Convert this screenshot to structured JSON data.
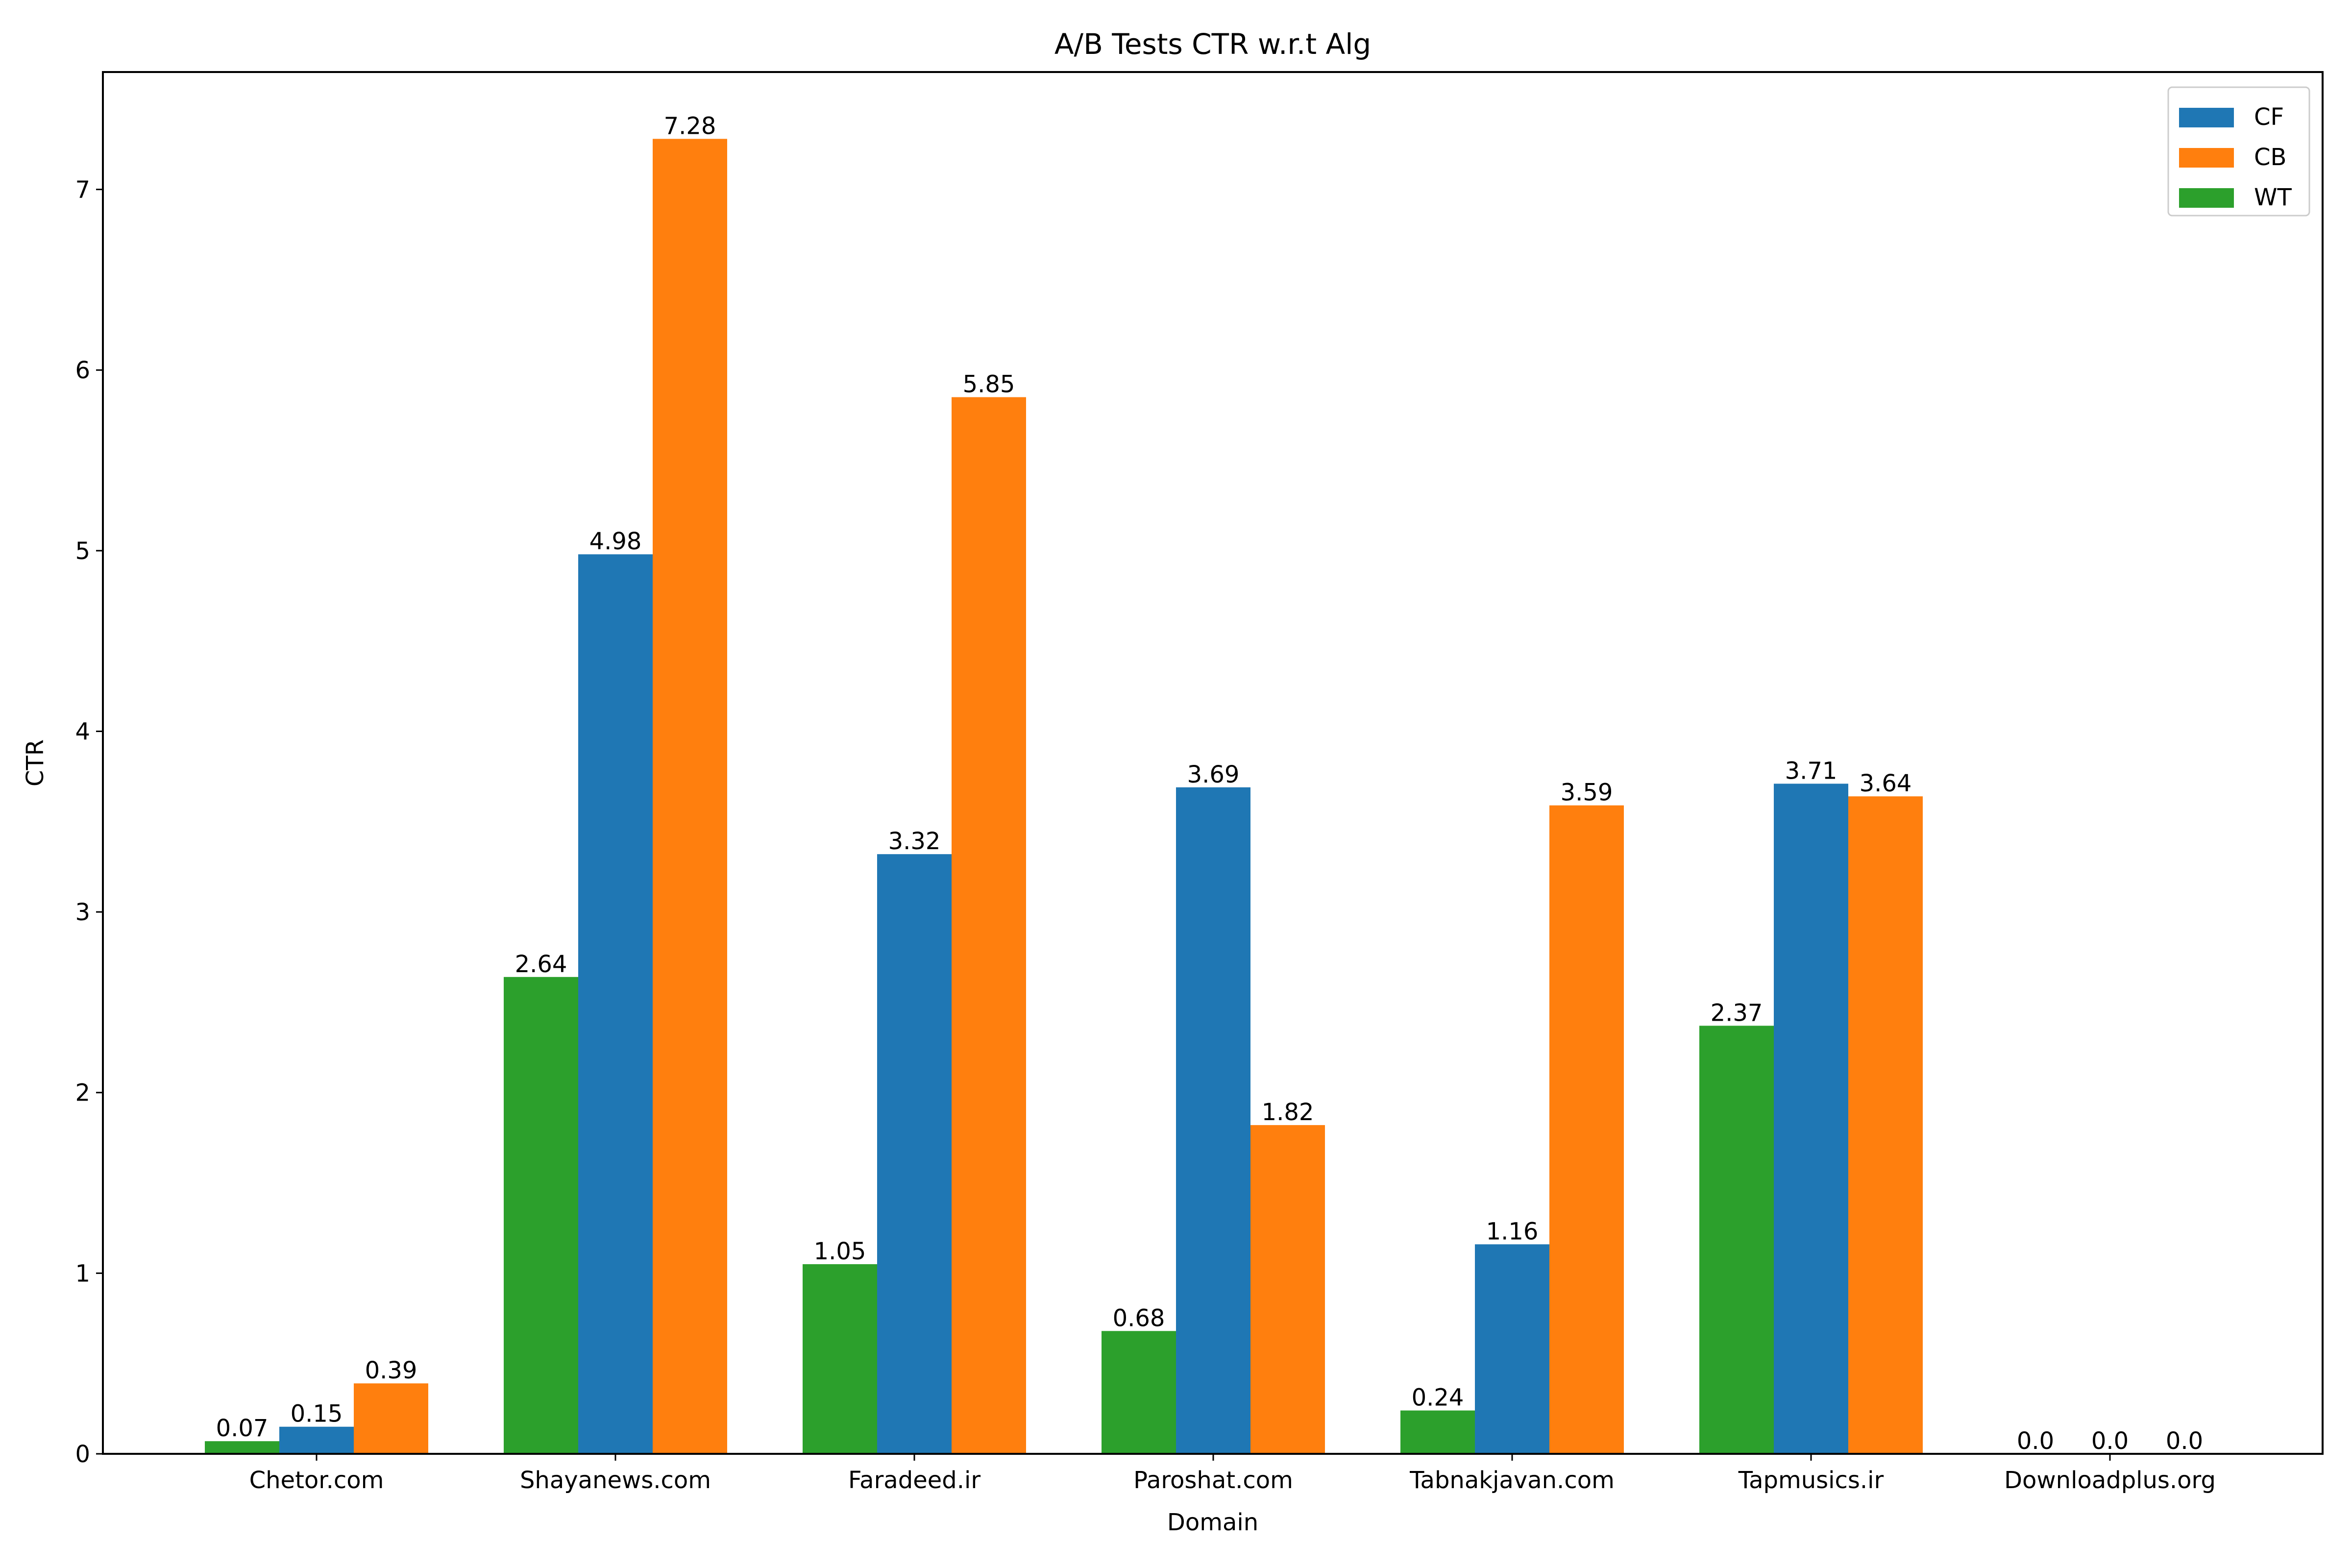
{
  "chart_data": {
    "type": "bar",
    "title": "A/B Tests CTR w.r.t Alg",
    "xlabel": "Domain",
    "ylabel": "CTR",
    "categories": [
      "Chetor.com",
      "Shayanews.com",
      "Faradeed.ir",
      "Paroshat.com",
      "Tabnakjavan.com",
      "Tapmusics.ir",
      "Downloadplus.org"
    ],
    "series": [
      {
        "name": "WT",
        "color": "#2ca02c",
        "values": [
          0.07,
          2.64,
          1.05,
          0.68,
          0.24,
          2.37,
          0.0
        ],
        "labels": [
          "0.07",
          "2.64",
          "1.05",
          "0.68",
          "0.24",
          "2.37",
          "0.0"
        ]
      },
      {
        "name": "CF",
        "color": "#1f77b4",
        "values": [
          0.15,
          4.98,
          3.32,
          3.69,
          1.16,
          3.71,
          0.0
        ],
        "labels": [
          "0.15",
          "4.98",
          "3.32",
          "3.69",
          "1.16",
          "3.71",
          "0.0"
        ]
      },
      {
        "name": "CB",
        "color": "#ff7f0e",
        "values": [
          0.39,
          7.28,
          5.85,
          1.82,
          3.59,
          3.64,
          0.0
        ],
        "labels": [
          "0.39",
          "7.28",
          "5.85",
          "1.82",
          "3.59",
          "3.64",
          "0.0"
        ]
      }
    ],
    "legend_order": [
      "CF",
      "CB",
      "WT"
    ],
    "legend_position": "top-right",
    "ylim": [
      0,
      7.65
    ],
    "yticks": [
      0,
      1,
      2,
      3,
      4,
      5,
      6,
      7
    ],
    "ytick_labels": [
      "0",
      "1",
      "2",
      "3",
      "4",
      "5",
      "6",
      "7"
    ],
    "grid": false
  }
}
